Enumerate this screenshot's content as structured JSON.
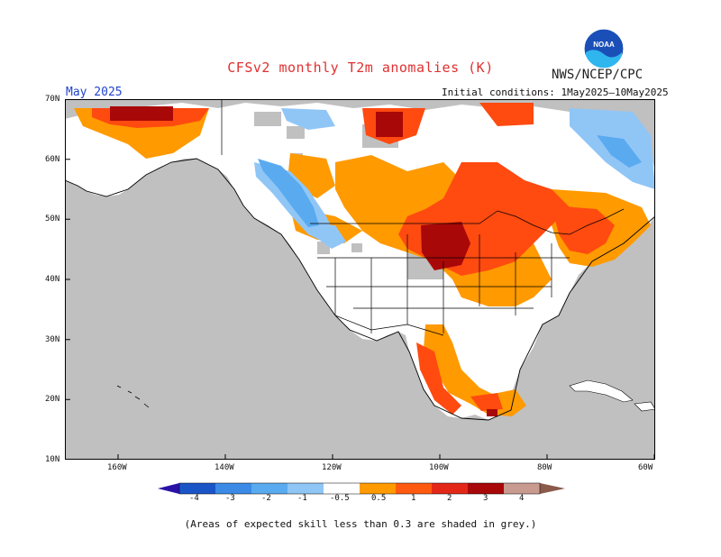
{
  "header": {
    "title": "CFSv2 monthly T2m anomalies (K)",
    "agency": "NWS/NCEP/CPC",
    "valid_month": "May 2025",
    "initial_conditions": "Initial conditions: 1May2025–10May2025",
    "logo_text": "NOAA"
  },
  "map": {
    "lat_labels": [
      "70N",
      "60N",
      "50N",
      "40N",
      "30N",
      "20N",
      "10N"
    ],
    "lon_labels": [
      "160W",
      "140W",
      "120W",
      "100W",
      "80W",
      "60W"
    ],
    "no_skill_color": "#c0c0c0"
  },
  "colorbar": {
    "labels": [
      "-4",
      "-3",
      "-2",
      "-1",
      "-0.5",
      "0.5",
      "1",
      "2",
      "3",
      "4"
    ],
    "colors": [
      "#2a12a8",
      "#1a55c8",
      "#3a8ae6",
      "#5aaaf0",
      "#90c6f6",
      "#ffffff",
      "#ff9a00",
      "#ff5a10",
      "#e42818",
      "#a80808",
      "#c89a90",
      "#8a5a4a"
    ]
  },
  "footnote": "(Areas of expected skill less than 0.3 are shaded in grey.)"
}
